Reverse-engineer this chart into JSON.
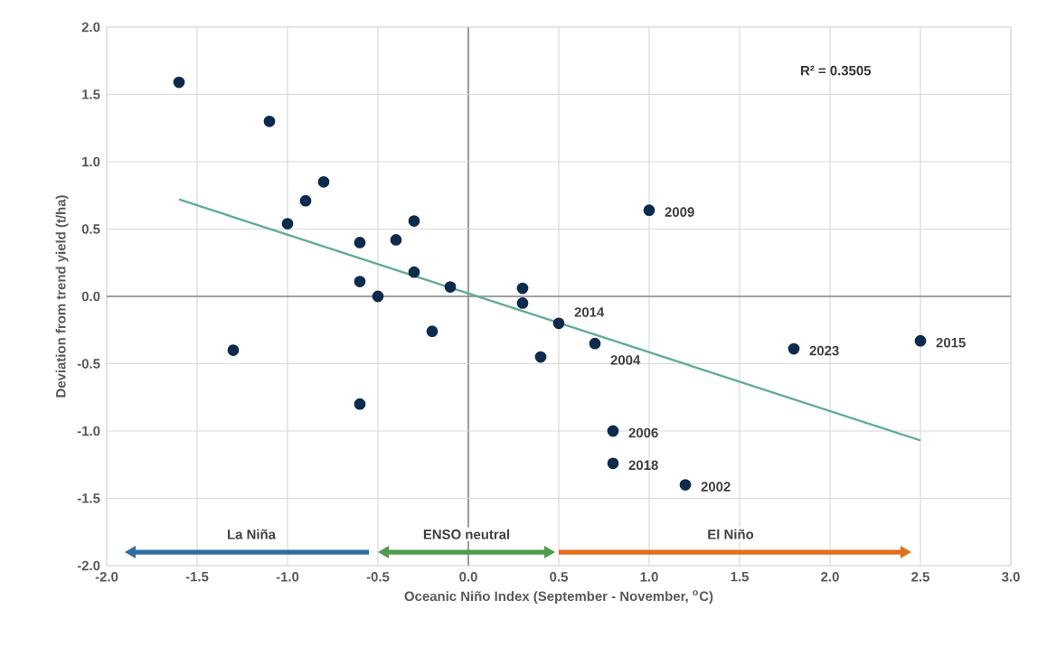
{
  "chart_data": {
    "type": "scatter",
    "xlabel": "Oceanic Niño Index (September - November, $^{o}$C)",
    "ylabel": "Deviation from trend yield (t/ha)",
    "xlim": [
      -2,
      3
    ],
    "ylim": [
      -2,
      2
    ],
    "xticks": [
      {
        "value": -2,
        "label": "-2.0"
      },
      {
        "value": -1.5,
        "label": "-1.5"
      },
      {
        "value": -1,
        "label": "-1.0"
      },
      {
        "value": -0.5,
        "label": "-0.5"
      },
      {
        "value": 0,
        "label": "0.0"
      },
      {
        "value": 0.5,
        "label": "0.5"
      },
      {
        "value": 1,
        "label": "1.0"
      },
      {
        "value": 1.5,
        "label": "1.5"
      },
      {
        "value": 2,
        "label": "2.0"
      },
      {
        "value": 2.5,
        "label": "2.5"
      },
      {
        "value": 3,
        "label": "3.0"
      }
    ],
    "yticks": [
      {
        "value": -2,
        "label": "-2.0"
      },
      {
        "value": -1.5,
        "label": "-1.5"
      },
      {
        "value": -1,
        "label": "-1.0"
      },
      {
        "value": -0.5,
        "label": "-0.5"
      },
      {
        "value": 0,
        "label": "0.0"
      },
      {
        "value": 0.5,
        "label": "0.5"
      },
      {
        "value": 1,
        "label": "1.0"
      },
      {
        "value": 1.5,
        "label": "1.5"
      },
      {
        "value": 2,
        "label": "2.0"
      }
    ],
    "grid": true,
    "series": [
      {
        "color": "#0d2a4f",
        "marker": "circle",
        "x": [
          -1.6,
          -1.1,
          -1.3,
          -1.0,
          -0.9,
          -0.8,
          -0.6,
          -0.6,
          -0.5,
          -0.4,
          -0.3,
          -0.3,
          -0.2,
          -0.1,
          -0.6,
          0.3,
          0.3,
          0.5,
          0.4,
          0.7,
          1.0,
          0.8,
          0.8,
          1.2,
          1.8,
          2.5
        ],
        "values": [
          1.59,
          1.3,
          -0.4,
          0.54,
          0.71,
          0.85,
          0.4,
          0.11,
          0.0,
          0.42,
          0.56,
          0.18,
          -0.26,
          0.07,
          -0.8,
          0.06,
          -0.05,
          -0.2,
          -0.45,
          -0.35,
          0.64,
          -1.0,
          -1.24,
          -1.4,
          -0.39,
          -0.33
        ]
      },
      {
        "type": "line",
        "color": "#5fae8f",
        "marker": "none",
        "x": [
          -1.6,
          2.5
        ],
        "values": [
          0.72,
          -1.07
        ]
      },
      {
        "type": "line",
        "color": "#2e6da4",
        "marker": "triangle",
        "x": [
          -1.85,
          -0.55
        ],
        "values": [
          -1.9,
          -1.9
        ]
      },
      {
        "type": "line",
        "color": "#4e9a4e",
        "marker": "triangle",
        "x": [
          -0.45,
          0.43
        ],
        "values": [
          -1.9,
          -1.9
        ]
      },
      {
        "type": "line",
        "color": "#e07020",
        "marker": "triangle",
        "x": [
          0.5,
          2.4
        ],
        "values": [
          -1.9,
          -1.9
        ]
      }
    ],
    "annotations": [
      "R² = 0.3505",
      {
        "text": "2014",
        "x": 0.5,
        "y": -0.2
      },
      {
        "text": "2004",
        "x": 0.7,
        "y": -0.35
      },
      {
        "text": "2009",
        "x": 1.0,
        "y": 0.64
      },
      {
        "text": "2006",
        "x": 0.8,
        "y": -1.0
      },
      {
        "text": "2018",
        "x": 0.8,
        "y": -1.24
      },
      {
        "text": "2002",
        "x": 1.2,
        "y": -1.4
      },
      {
        "text": "2023",
        "x": 1.8,
        "y": -0.39
      },
      {
        "text": "2015",
        "x": 2.5,
        "y": -0.33
      },
      {
        "text": "La Niña",
        "x": -1.2,
        "y": -1.9
      },
      {
        "text": "ENSO neutral",
        "x": -0.01,
        "y": -1.9
      },
      {
        "text": "El Niño",
        "x": 1.45,
        "y": -1.9
      }
    ]
  }
}
